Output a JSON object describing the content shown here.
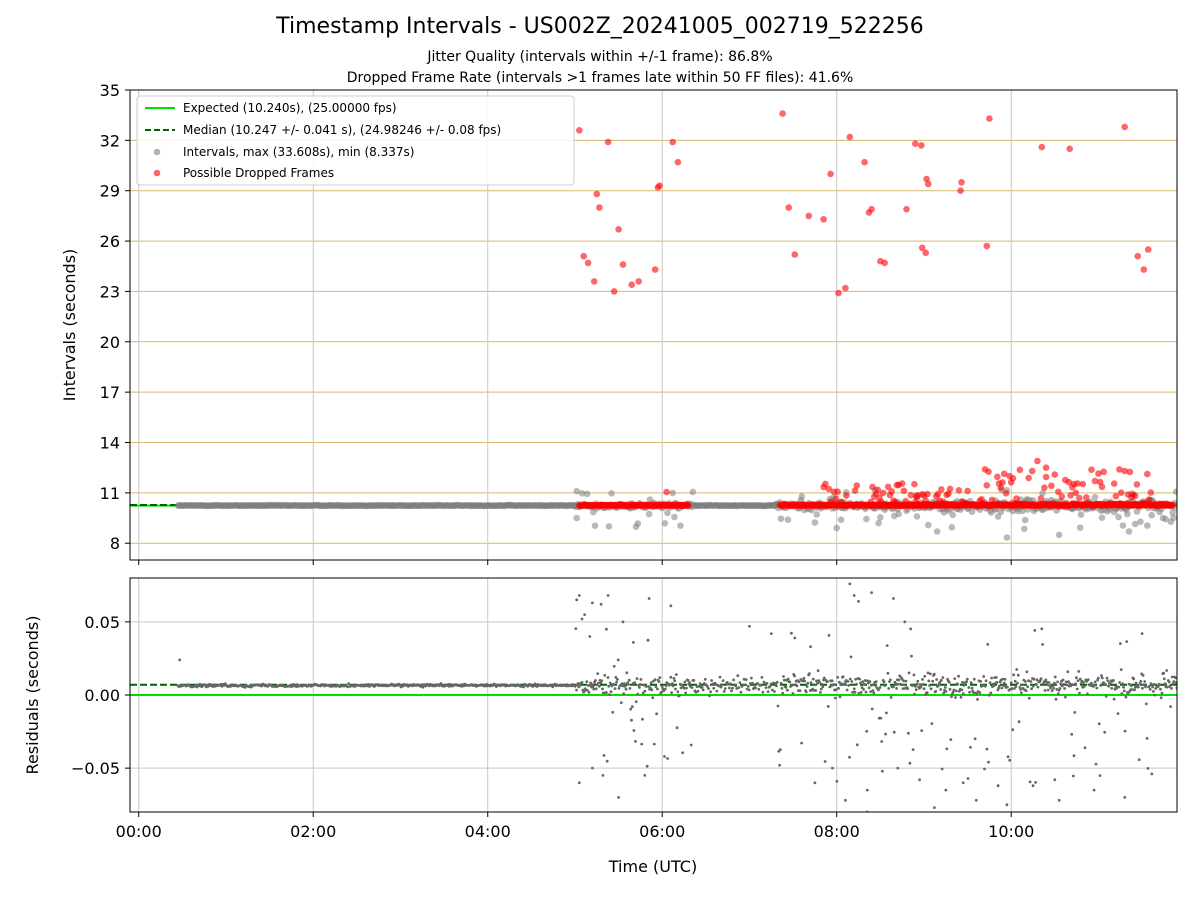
{
  "chart_data": [
    {
      "type": "scatter",
      "title": "Timestamp Intervals - US002Z_20241005_002719_522256",
      "subtitle_lines": [
        "Jitter Quality (intervals within +/-1 frame): 86.8%",
        "Dropped Frame Rate (intervals >1 frames late within 50 FF files): 41.6%"
      ],
      "xlabel": "",
      "ylabel": "Intervals (seconds)",
      "x_unit": "hours since 00:00 UTC",
      "xlim": [
        -0.1,
        11.9
      ],
      "ylim": [
        7,
        35
      ],
      "yticks": [
        8,
        11,
        14,
        17,
        20,
        23,
        26,
        29,
        32,
        35
      ],
      "xticks": [
        0,
        2,
        4,
        6,
        8,
        10
      ],
      "xtick_labels": [
        "00:00",
        "02:00",
        "04:00",
        "06:00",
        "08:00",
        "10:00"
      ],
      "grid": true,
      "legend_position": "top-left",
      "legend": [
        "Expected (10.240s), (25.00000 fps)",
        "Median (10.247 +/- 0.041 s), (24.98246 +/- 0.08 fps)",
        "Intervals, max (33.608s), min (8.337s)",
        "Possible Dropped Frames"
      ],
      "expected_interval": 10.24,
      "median_interval": 10.247,
      "interval_max": 33.608,
      "interval_min": 8.337,
      "colors": {
        "expected": "#00e000",
        "median": "#006400",
        "intervals": "#808080",
        "dropped": "#ff0000",
        "hgrid": "#d6b86e",
        "vgrid": "#c8c8c8"
      },
      "dropped_points": [
        [
          5.05,
          32.6
        ],
        [
          5.1,
          25.1
        ],
        [
          5.15,
          24.7
        ],
        [
          5.22,
          23.6
        ],
        [
          5.25,
          28.8
        ],
        [
          5.28,
          28.0
        ],
        [
          5.38,
          31.9
        ],
        [
          5.45,
          23.0
        ],
        [
          5.5,
          26.7
        ],
        [
          5.55,
          24.6
        ],
        [
          5.65,
          23.4
        ],
        [
          5.73,
          23.6
        ],
        [
          5.92,
          24.3
        ],
        [
          5.95,
          29.2
        ],
        [
          5.97,
          29.3
        ],
        [
          6.12,
          31.9
        ],
        [
          6.18,
          30.7
        ],
        [
          7.38,
          33.6
        ],
        [
          7.45,
          28.0
        ],
        [
          7.52,
          25.2
        ],
        [
          7.68,
          27.5
        ],
        [
          7.85,
          27.3
        ],
        [
          7.93,
          30.0
        ],
        [
          8.02,
          22.9
        ],
        [
          8.1,
          23.2
        ],
        [
          8.15,
          32.2
        ],
        [
          8.32,
          30.7
        ],
        [
          8.37,
          27.7
        ],
        [
          8.4,
          27.9
        ],
        [
          8.5,
          24.8
        ],
        [
          8.55,
          24.7
        ],
        [
          8.8,
          27.9
        ],
        [
          8.9,
          31.8
        ],
        [
          8.97,
          31.7
        ],
        [
          8.98,
          25.6
        ],
        [
          9.02,
          25.3
        ],
        [
          9.03,
          29.7
        ],
        [
          9.05,
          29.4
        ],
        [
          9.42,
          29.0
        ],
        [
          9.43,
          29.5
        ],
        [
          9.72,
          25.7
        ],
        [
          9.75,
          33.3
        ],
        [
          10.35,
          31.6
        ],
        [
          10.67,
          31.5
        ],
        [
          11.3,
          32.8
        ],
        [
          11.45,
          25.1
        ],
        [
          11.52,
          24.3
        ],
        [
          11.57,
          25.5
        ]
      ]
    },
    {
      "type": "scatter",
      "xlabel": "Time (UTC)",
      "ylabel": "Residuals (seconds)",
      "x_unit": "hours since 00:00 UTC",
      "xlim": [
        -0.1,
        11.9
      ],
      "ylim": [
        -0.08,
        0.08
      ],
      "yticks": [
        -0.05,
        0.0,
        0.05
      ],
      "ytick_labels": [
        "−0.05",
        "0.00",
        "0.05"
      ],
      "xticks": [
        0,
        2,
        4,
        6,
        8,
        10
      ],
      "xtick_labels": [
        "00:00",
        "02:00",
        "04:00",
        "06:00",
        "08:00",
        "10:00"
      ],
      "expected_residual": 0.0,
      "median_residual": 0.007,
      "grid": true,
      "outlier_points": [
        [
          0.47,
          0.024
        ],
        [
          5.02,
          0.065
        ],
        [
          5.05,
          0.068
        ],
        [
          5.08,
          0.052
        ],
        [
          5.11,
          0.055
        ],
        [
          5.17,
          0.04
        ],
        [
          5.2,
          0.063
        ],
        [
          5.3,
          0.062
        ],
        [
          5.36,
          0.045
        ],
        [
          5.38,
          0.068
        ],
        [
          5.55,
          0.05
        ],
        [
          5.67,
          0.036
        ],
        [
          5.85,
          0.066
        ],
        [
          6.1,
          0.061
        ],
        [
          7.0,
          0.047
        ],
        [
          7.25,
          0.042
        ],
        [
          7.52,
          0.039
        ],
        [
          7.7,
          0.033
        ],
        [
          8.2,
          0.068
        ],
        [
          8.25,
          0.064
        ],
        [
          8.4,
          0.07
        ],
        [
          8.15,
          0.076
        ],
        [
          8.65,
          0.066
        ],
        [
          8.78,
          0.05
        ],
        [
          11.5,
          0.042
        ],
        [
          5.05,
          -0.06
        ],
        [
          5.2,
          -0.05
        ],
        [
          5.32,
          -0.055
        ],
        [
          5.5,
          -0.07
        ],
        [
          5.8,
          -0.055
        ],
        [
          7.75,
          -0.06
        ],
        [
          7.95,
          -0.05
        ],
        [
          8.1,
          -0.072
        ],
        [
          8.35,
          -0.065
        ],
        [
          8.7,
          -0.05
        ],
        [
          8.95,
          -0.058
        ],
        [
          9.25,
          -0.065
        ],
        [
          9.45,
          -0.06
        ],
        [
          9.6,
          -0.072
        ],
        [
          9.85,
          -0.062
        ],
        [
          9.95,
          -0.075
        ],
        [
          10.25,
          -0.062
        ],
        [
          10.5,
          -0.058
        ],
        [
          10.55,
          -0.072
        ],
        [
          10.95,
          -0.065
        ],
        [
          11.3,
          -0.07
        ],
        [
          8.35,
          -0.08
        ],
        [
          9.12,
          -0.077
        ]
      ]
    }
  ]
}
